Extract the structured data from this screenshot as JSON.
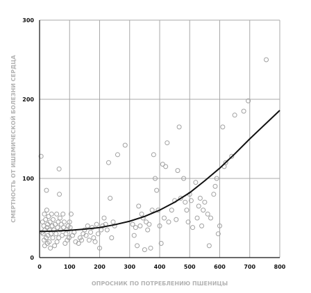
{
  "chart_data": {
    "type": "scatter",
    "title": "",
    "xlabel": "ОПРОСНИК ПО ПОТРЕБЛЕНИЮ ПШЕНИЦЫ",
    "ylabel": "СМЕРТНОСТЬ ОТ ИШЕМИЧЕСКОЙ БОЛЕЗНИ СЕРДЦА",
    "xlim": [
      0,
      800
    ],
    "ylim": [
      0,
      300
    ],
    "x_ticks": [
      "0",
      "100",
      "200",
      "300",
      "400",
      "500",
      "600",
      "700",
      "800"
    ],
    "y_ticks": [
      "0",
      "100",
      "200",
      "300"
    ],
    "grid": true,
    "point_color": "#a0a0a0",
    "curve_color": "#111111",
    "points": [
      [
        5,
        128
      ],
      [
        8,
        32
      ],
      [
        10,
        45
      ],
      [
        12,
        30
      ],
      [
        14,
        40
      ],
      [
        15,
        22
      ],
      [
        16,
        55
      ],
      [
        17,
        15
      ],
      [
        18,
        35
      ],
      [
        20,
        48
      ],
      [
        22,
        25
      ],
      [
        23,
        85
      ],
      [
        24,
        60
      ],
      [
        25,
        38
      ],
      [
        26,
        18
      ],
      [
        27,
        42
      ],
      [
        28,
        28
      ],
      [
        30,
        52
      ],
      [
        32,
        20
      ],
      [
        33,
        35
      ],
      [
        35,
        45
      ],
      [
        36,
        12
      ],
      [
        38,
        30
      ],
      [
        40,
        55
      ],
      [
        42,
        40
      ],
      [
        44,
        25
      ],
      [
        45,
        48
      ],
      [
        48,
        35
      ],
      [
        50,
        15
      ],
      [
        52,
        42
      ],
      [
        55,
        30
      ],
      [
        57,
        55
      ],
      [
        58,
        20
      ],
      [
        60,
        38
      ],
      [
        62,
        45
      ],
      [
        64,
        25
      ],
      [
        65,
        112
      ],
      [
        66,
        80
      ],
      [
        68,
        50
      ],
      [
        70,
        35
      ],
      [
        72,
        42
      ],
      [
        75,
        28
      ],
      [
        78,
        55
      ],
      [
        80,
        38
      ],
      [
        82,
        45
      ],
      [
        85,
        18
      ],
      [
        88,
        30
      ],
      [
        90,
        35
      ],
      [
        92,
        22
      ],
      [
        95,
        40
      ],
      [
        98,
        25
      ],
      [
        100,
        45
      ],
      [
        102,
        38
      ],
      [
        105,
        55
      ],
      [
        110,
        28
      ],
      [
        115,
        32
      ],
      [
        120,
        20
      ],
      [
        130,
        18
      ],
      [
        135,
        25
      ],
      [
        140,
        22
      ],
      [
        145,
        30
      ],
      [
        150,
        35
      ],
      [
        155,
        28
      ],
      [
        160,
        40
      ],
      [
        165,
        22
      ],
      [
        170,
        32
      ],
      [
        175,
        38
      ],
      [
        180,
        25
      ],
      [
        185,
        20
      ],
      [
        190,
        42
      ],
      [
        195,
        30
      ],
      [
        200,
        12
      ],
      [
        205,
        35
      ],
      [
        210,
        40
      ],
      [
        215,
        50
      ],
      [
        220,
        42
      ],
      [
        225,
        35
      ],
      [
        230,
        120
      ],
      [
        235,
        75
      ],
      [
        240,
        25
      ],
      [
        245,
        45
      ],
      [
        250,
        40
      ],
      [
        260,
        130
      ],
      [
        285,
        142
      ],
      [
        310,
        42
      ],
      [
        315,
        28
      ],
      [
        320,
        38
      ],
      [
        325,
        15
      ],
      [
        330,
        65
      ],
      [
        335,
        40
      ],
      [
        340,
        55
      ],
      [
        345,
        50
      ],
      [
        350,
        10
      ],
      [
        355,
        45
      ],
      [
        360,
        35
      ],
      [
        365,
        42
      ],
      [
        370,
        12
      ],
      [
        375,
        60
      ],
      [
        380,
        130
      ],
      [
        385,
        100
      ],
      [
        390,
        85
      ],
      [
        395,
        60
      ],
      [
        400,
        40
      ],
      [
        405,
        18
      ],
      [
        410,
        118
      ],
      [
        415,
        50
      ],
      [
        420,
        115
      ],
      [
        425,
        145
      ],
      [
        430,
        45
      ],
      [
        440,
        60
      ],
      [
        450,
        72
      ],
      [
        455,
        48
      ],
      [
        460,
        110
      ],
      [
        465,
        165
      ],
      [
        470,
        75
      ],
      [
        480,
        100
      ],
      [
        485,
        70
      ],
      [
        490,
        60
      ],
      [
        495,
        45
      ],
      [
        500,
        80
      ],
      [
        505,
        72
      ],
      [
        510,
        38
      ],
      [
        520,
        95
      ],
      [
        525,
        50
      ],
      [
        530,
        65
      ],
      [
        535,
        75
      ],
      [
        540,
        40
      ],
      [
        545,
        60
      ],
      [
        550,
        70
      ],
      [
        560,
        55
      ],
      [
        565,
        15
      ],
      [
        570,
        50
      ],
      [
        580,
        80
      ],
      [
        585,
        90
      ],
      [
        590,
        100
      ],
      [
        595,
        30
      ],
      [
        600,
        40
      ],
      [
        610,
        165
      ],
      [
        615,
        115
      ],
      [
        620,
        120
      ],
      [
        640,
        128
      ],
      [
        650,
        180
      ],
      [
        680,
        185
      ],
      [
        695,
        198
      ],
      [
        755,
        250
      ]
    ],
    "fit_curve": [
      [
        0,
        33
      ],
      [
        50,
        33.5
      ],
      [
        100,
        34.5
      ],
      [
        150,
        36
      ],
      [
        200,
        38
      ],
      [
        250,
        41.5
      ],
      [
        300,
        46
      ],
      [
        350,
        52
      ],
      [
        400,
        60
      ],
      [
        450,
        70
      ],
      [
        500,
        82
      ],
      [
        550,
        97
      ],
      [
        600,
        113
      ],
      [
        650,
        131
      ],
      [
        700,
        150
      ],
      [
        750,
        168
      ],
      [
        800,
        186
      ]
    ]
  }
}
